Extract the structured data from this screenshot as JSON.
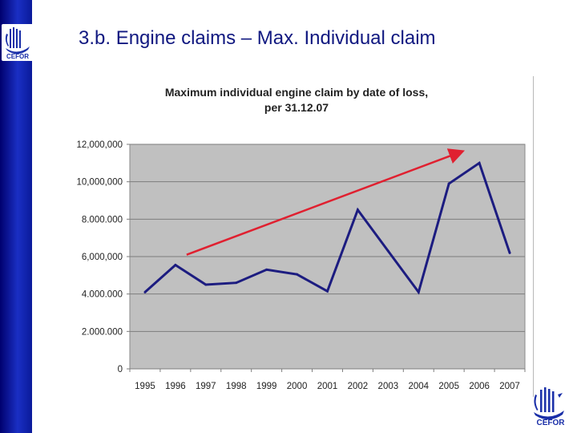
{
  "slide": {
    "title": "3.b. Engine claims – Max. Individual claim",
    "logo_text": "CEFOR"
  },
  "colors": {
    "sidebar": "#1a2fc4",
    "line": "#1c1c80",
    "trend_arrow": "#e02030",
    "plot_bg": "#c0c0c0",
    "title_text": "#101880"
  },
  "chart_data": {
    "type": "line",
    "title": "Maximum individual engine claim by date of loss,",
    "subtitle": "per 31.12.07",
    "categories": [
      "1995",
      "1996",
      "1997",
      "1998",
      "1999",
      "2000",
      "2001",
      "2002",
      "2003",
      "2004",
      "2005",
      "2006",
      "2007"
    ],
    "series": [
      {
        "values": [
          4100000,
          5550000,
          4500000,
          4600000,
          5300000,
          5050000,
          4150000,
          8500000,
          6300000,
          4100000,
          9900000,
          11000000,
          6200000
        ]
      }
    ],
    "ylim": [
      0,
      12000000
    ],
    "yticks": [
      {
        "value": 0,
        "label": "0"
      },
      {
        "value": 2000000,
        "label": "2.000.000"
      },
      {
        "value": 4000000,
        "label": "4.000.000"
      },
      {
        "value": 6000000,
        "label": "6,000,000"
      },
      {
        "value": 8000000,
        "label": "8.000.000"
      },
      {
        "value": 10000000,
        "label": "10,000,000"
      },
      {
        "value": 12000000,
        "label": "12,000,000"
      }
    ],
    "grid": true,
    "legend": "none",
    "annotations": [
      {
        "type": "arrow",
        "from": {
          "x": "1996",
          "y": 6100000
        },
        "to": {
          "x": "2005.4",
          "y": 11600000
        }
      }
    ]
  }
}
